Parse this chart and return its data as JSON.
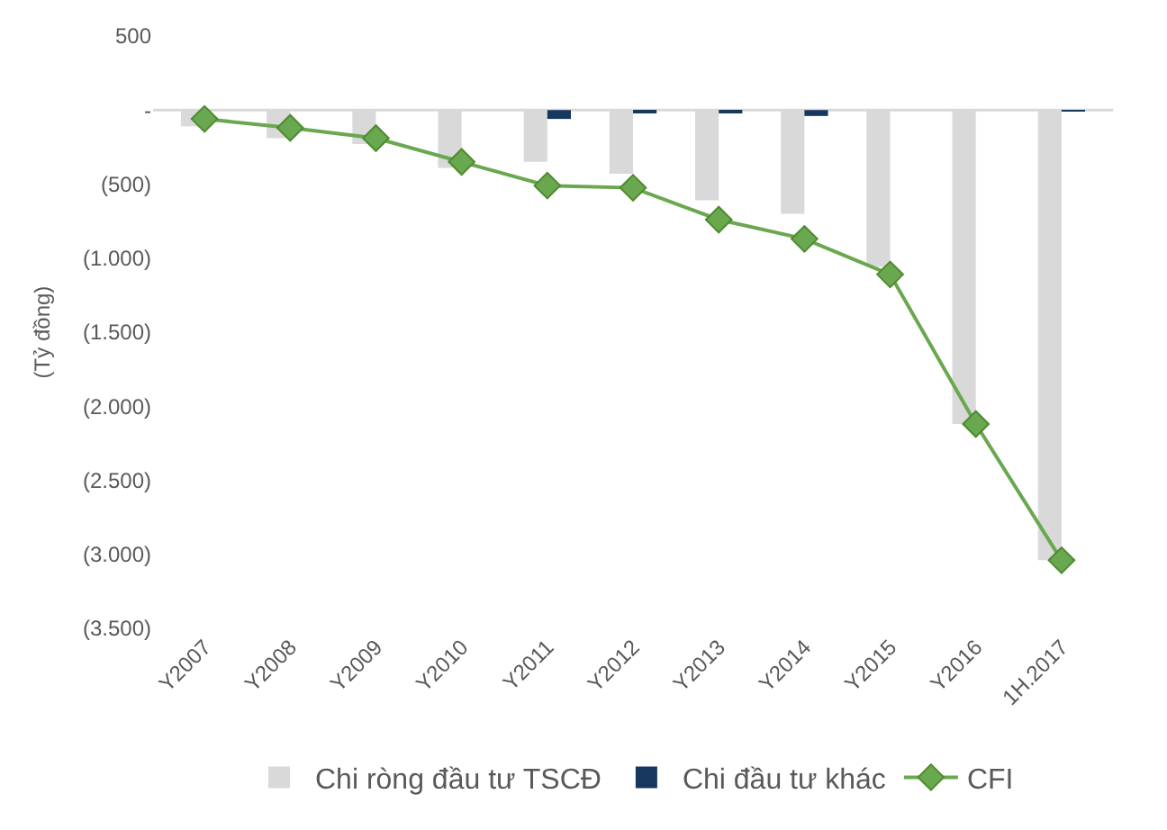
{
  "chart_data": {
    "type": "bar",
    "ylabel": "(Tỷ đồng)",
    "categories": [
      "Y2007",
      "Y2008",
      "Y2009",
      "Y2010",
      "Y2011",
      "Y2012",
      "Y2013",
      "Y2014",
      "Y2015",
      "Y2016",
      "1H.2017"
    ],
    "series": [
      {
        "name": "Chi ròng đầu tư TSCĐ",
        "color": "#d9d9d9",
        "values": [
          -110,
          -190,
          -230,
          -390,
          -350,
          -430,
          -610,
          -700,
          -1060,
          -2120,
          -3040
        ]
      },
      {
        "name": "Chi đầu tư khác",
        "color": "#17375e",
        "values": [
          0,
          0,
          0,
          0,
          -60,
          -20,
          -20,
          -40,
          0,
          0,
          -10
        ]
      },
      {
        "name": "CFI",
        "type": "line",
        "color": "#6aa84f",
        "marker": "diamond",
        "values": [
          -60,
          -120,
          -190,
          -350,
          -510,
          -525,
          -740,
          -870,
          -1110,
          -2120,
          -3040
        ]
      }
    ],
    "ylim": [
      -3500,
      500
    ],
    "yticks": [
      500,
      {
        "value": 0,
        "label": "-"
      },
      {
        "value": -500,
        "label": "(500)"
      },
      {
        "value": -1000,
        "label": "(1.000)"
      },
      {
        "value": -1500,
        "label": "(1.500)"
      },
      {
        "value": -2000,
        "label": "(2.000)"
      },
      {
        "value": -2500,
        "label": "(2.500)"
      },
      {
        "value": -3000,
        "label": "(3.000)"
      },
      {
        "value": -3500,
        "label": "(3.500)"
      }
    ],
    "ref_lines": [
      {
        "axis": "y",
        "value": 0,
        "color": "#d9d9d9"
      }
    ],
    "legend": "bottom"
  }
}
